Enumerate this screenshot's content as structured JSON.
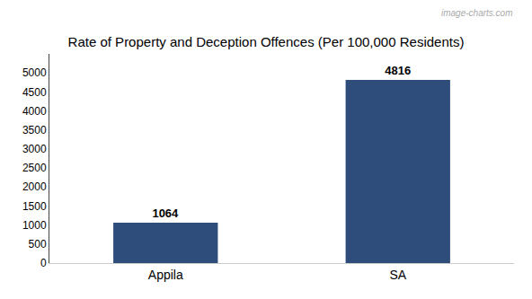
{
  "chart_data": {
    "type": "bar",
    "title": "Rate of Property and Deception Offences (Per 100,000 Residents)",
    "categories": [
      "Appila",
      "SA"
    ],
    "values": [
      1064,
      4816
    ],
    "color": "#2E4D7B",
    "ylim": [
      0,
      5500
    ],
    "yticks": [
      0,
      500,
      1000,
      1500,
      2000,
      2500,
      3000,
      3500,
      4000,
      4500,
      5000
    ],
    "grid": false,
    "data_labels": true,
    "annotations": [
      "image-charts.com"
    ]
  }
}
